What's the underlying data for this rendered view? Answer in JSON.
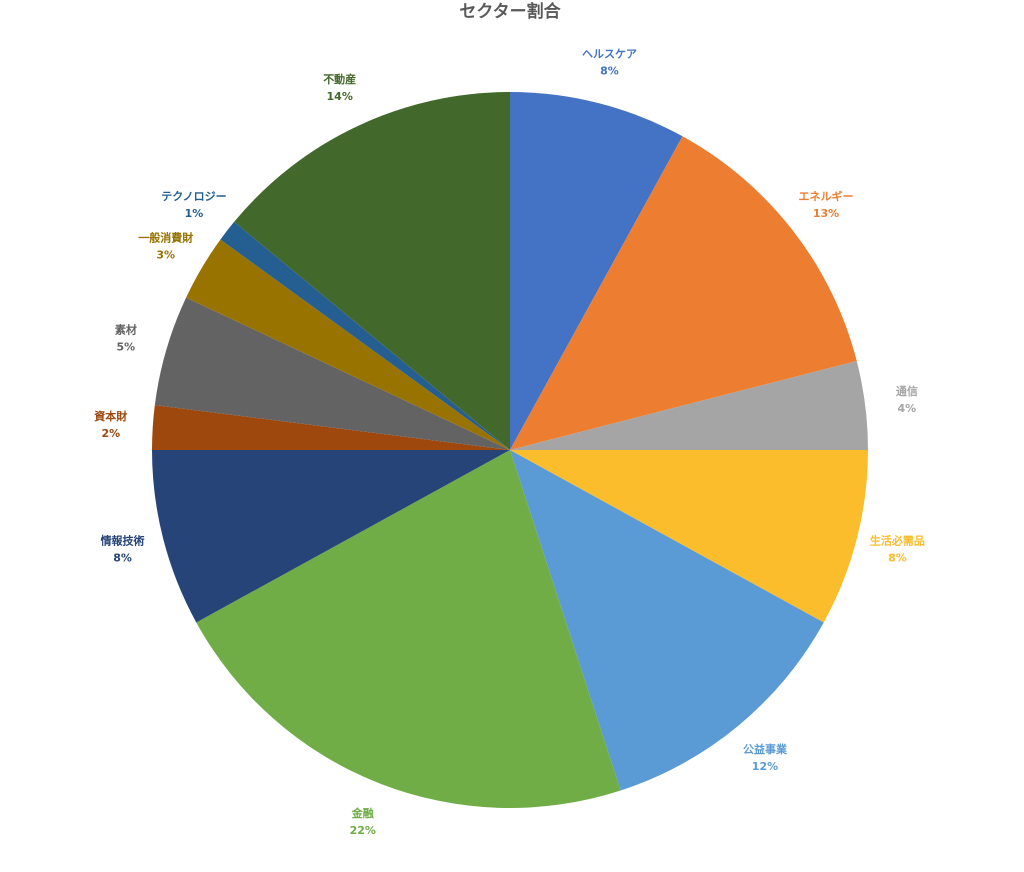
{
  "chart_data": {
    "type": "pie",
    "title": "セクター割合",
    "categories": [
      "ヘルスケア",
      "エネルギー",
      "通信",
      "生活必需品",
      "公益事業",
      "金融",
      "情報技術",
      "資本財",
      "素材",
      "一般消費財",
      "テクノロジー",
      "不動産"
    ],
    "values": [
      8,
      13,
      4,
      8,
      12,
      22,
      8,
      2,
      5,
      3,
      1,
      14
    ],
    "value_labels": [
      "8%",
      "13%",
      "4%",
      "8%",
      "12%",
      "22%",
      "8%",
      "2%",
      "5%",
      "3%",
      "1%",
      "14%"
    ],
    "colors": [
      "#4472c4",
      "#ed7d31",
      "#a5a5a5",
      "#fbbd2c",
      "#5b9bd5",
      "#70ad47",
      "#264478",
      "#9e480e",
      "#636363",
      "#997300",
      "#255e91",
      "#43682b"
    ]
  }
}
